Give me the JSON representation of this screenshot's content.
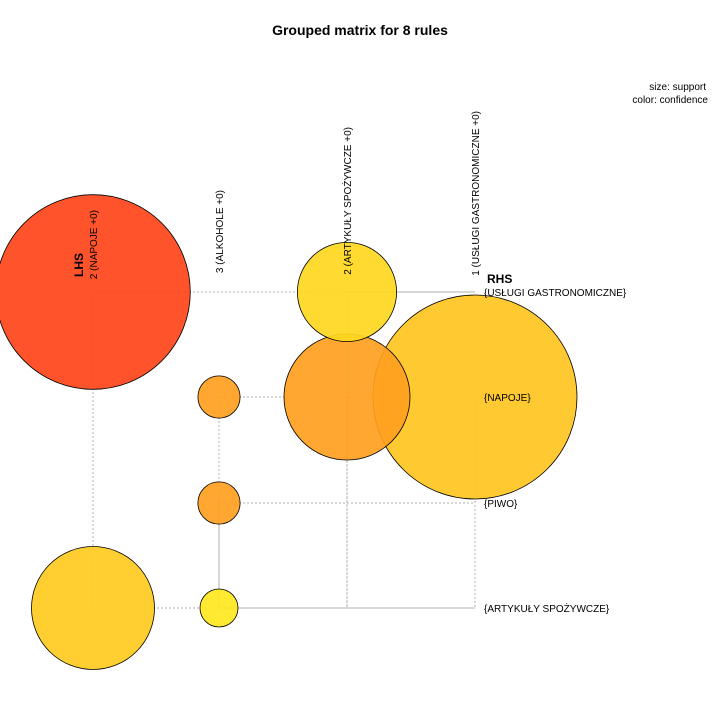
{
  "chart_data": {
    "type": "grouped_matrix",
    "title": "Grouped matrix for 8 rules",
    "legend": {
      "size_label": "size: support",
      "color_label": "color: confidence",
      "placement": "top-right"
    },
    "lhs_axis_title": "LHS",
    "rhs_axis_title": "RHS",
    "lhs_groups": [
      "2 (NAPOJE +0)",
      "3 (ALKOHOLE +0)",
      "2 (ARTYKUŁY SPOŻYWCZE +0)",
      "1 (USŁUGI GASTRONOMICZNE +0)"
    ],
    "rhs_items": [
      "{USŁUGI GASTRONOMICZNE}",
      "{NAPOJE}",
      "{PIWO}",
      "{ARTYKUŁY SPOŻYWCZE}"
    ],
    "rules": [
      {
        "lhs": 0,
        "rhs": 0,
        "support": 1.0,
        "color": "#ff4519"
      },
      {
        "lhs": 0,
        "rhs": 3,
        "support": 0.4,
        "color": "#ffca1f"
      },
      {
        "lhs": 1,
        "rhs": 1,
        "support": 0.047,
        "color": "#ffa01f"
      },
      {
        "lhs": 1,
        "rhs": 2,
        "support": 0.047,
        "color": "#ffa01f"
      },
      {
        "lhs": 1,
        "rhs": 3,
        "support": 0.038,
        "color": "#ffe81f"
      },
      {
        "lhs": 2,
        "rhs": 0,
        "support": 0.26,
        "color": "#ffd81f"
      },
      {
        "lhs": 2,
        "rhs": 1,
        "support": 0.42,
        "color": "#ffa01f"
      },
      {
        "lhs": 3,
        "rhs": 1,
        "support": 1.1,
        "color": "#ffc51f"
      }
    ]
  }
}
